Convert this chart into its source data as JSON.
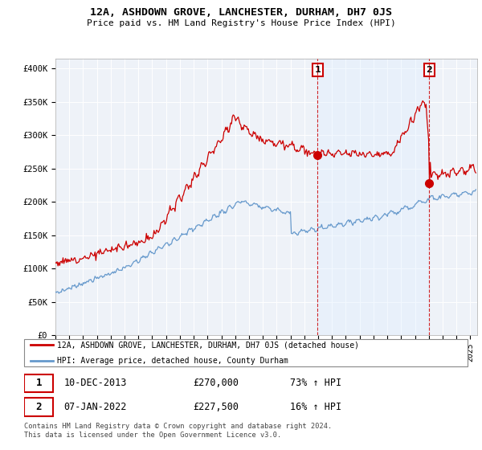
{
  "title": "12A, ASHDOWN GROVE, LANCHESTER, DURHAM, DH7 0JS",
  "subtitle": "Price paid vs. HM Land Registry's House Price Index (HPI)",
  "ylabel_ticks": [
    "£0",
    "£50K",
    "£100K",
    "£150K",
    "£200K",
    "£250K",
    "£300K",
    "£350K",
    "£400K"
  ],
  "ytick_values": [
    0,
    50000,
    100000,
    150000,
    200000,
    250000,
    300000,
    350000,
    400000
  ],
  "ylim": [
    0,
    415000
  ],
  "xlim_start": 1995.0,
  "xlim_end": 2025.5,
  "house_color": "#cc0000",
  "hpi_color": "#6699cc",
  "shade_color": "#ddeeff",
  "sale1_x": 2013.95,
  "sale1_price": 270000,
  "sale2_x": 2022.04,
  "sale2_price": 227500,
  "legend_label1": "12A, ASHDOWN GROVE, LANCHESTER, DURHAM, DH7 0JS (detached house)",
  "legend_label2": "HPI: Average price, detached house, County Durham",
  "footnote": "Contains HM Land Registry data © Crown copyright and database right 2024.\nThis data is licensed under the Open Government Licence v3.0.",
  "background_color": "#ffffff",
  "plot_bg_color": "#eef2f8"
}
